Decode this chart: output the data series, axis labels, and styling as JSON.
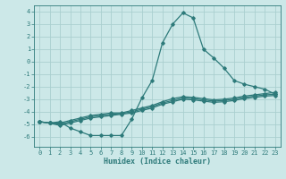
{
  "xlabel": "Humidex (Indice chaleur)",
  "bg_color": "#cce8e8",
  "line_color": "#2d7a7a",
  "grid_color": "#aacfcf",
  "xlim": [
    -0.5,
    23.5
  ],
  "ylim": [
    -6.8,
    4.5
  ],
  "xticks": [
    0,
    1,
    2,
    3,
    4,
    5,
    6,
    7,
    8,
    9,
    10,
    11,
    12,
    13,
    14,
    15,
    16,
    17,
    18,
    19,
    20,
    21,
    22,
    23
  ],
  "yticks": [
    -6,
    -5,
    -4,
    -3,
    -2,
    -1,
    0,
    1,
    2,
    3,
    4
  ],
  "series1_x": [
    0,
    1,
    2,
    3,
    4,
    5,
    6,
    7,
    8,
    9,
    10,
    11,
    12,
    13,
    14,
    15,
    16,
    17,
    18,
    19,
    20,
    21,
    22,
    23
  ],
  "series1_y": [
    -4.8,
    -4.9,
    -4.8,
    -5.3,
    -5.6,
    -5.9,
    -5.9,
    -5.9,
    -5.9,
    -4.6,
    -2.9,
    -1.5,
    1.5,
    3.0,
    3.9,
    3.5,
    1.0,
    0.3,
    -0.5,
    -1.5,
    -1.8,
    -2.0,
    -2.2,
    -2.6
  ],
  "series2_x": [
    0,
    1,
    2,
    3,
    4,
    5,
    6,
    7,
    8,
    9,
    10,
    11,
    12,
    13,
    14,
    15,
    16,
    17,
    18,
    19,
    20,
    21,
    22,
    23
  ],
  "series2_y": [
    -4.8,
    -4.9,
    -4.9,
    -4.7,
    -4.5,
    -4.3,
    -4.2,
    -4.1,
    -4.1,
    -3.9,
    -3.7,
    -3.5,
    -3.2,
    -2.95,
    -2.8,
    -2.85,
    -2.95,
    -3.05,
    -3.0,
    -2.9,
    -2.75,
    -2.65,
    -2.55,
    -2.45
  ],
  "series3_x": [
    0,
    1,
    2,
    3,
    4,
    5,
    6,
    7,
    8,
    9,
    10,
    11,
    12,
    13,
    14,
    15,
    16,
    17,
    18,
    19,
    20,
    21,
    22,
    23
  ],
  "series3_y": [
    -4.8,
    -4.9,
    -5.0,
    -4.8,
    -4.6,
    -4.4,
    -4.3,
    -4.2,
    -4.15,
    -4.0,
    -3.8,
    -3.6,
    -3.3,
    -3.1,
    -2.9,
    -2.95,
    -3.05,
    -3.15,
    -3.1,
    -3.0,
    -2.85,
    -2.75,
    -2.65,
    -2.6
  ],
  "series4_x": [
    0,
    1,
    2,
    3,
    4,
    5,
    6,
    7,
    8,
    9,
    10,
    11,
    12,
    13,
    14,
    15,
    16,
    17,
    18,
    19,
    20,
    21,
    22,
    23
  ],
  "series4_y": [
    -4.8,
    -4.9,
    -5.1,
    -4.9,
    -4.7,
    -4.5,
    -4.4,
    -4.3,
    -4.2,
    -4.1,
    -3.9,
    -3.7,
    -3.4,
    -3.2,
    -3.0,
    -3.05,
    -3.15,
    -3.25,
    -3.2,
    -3.1,
    -2.95,
    -2.85,
    -2.75,
    -2.7
  ]
}
